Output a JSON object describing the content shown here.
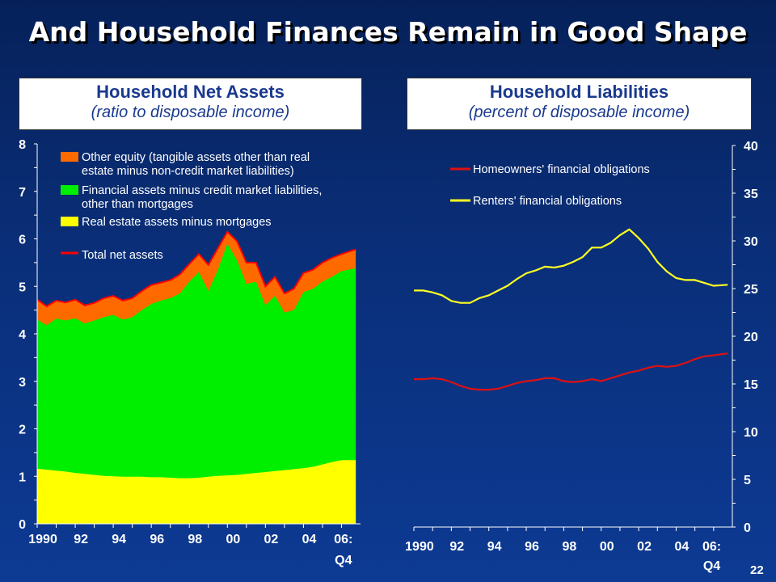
{
  "title": "And Household Finances Remain in Good Shape",
  "page_number": "22",
  "left_panel": {
    "title": "Household Net Assets",
    "subtitle": "(ratio to disposable income)"
  },
  "right_panel": {
    "title": "Household Liabilities",
    "subtitle": "(percent of disposable income)"
  },
  "colors": {
    "real_estate": "#ffff00",
    "financial": "#00ee00",
    "other_equity": "#ff6a00",
    "total_line": "#ff0000",
    "homeowners": "#dd1111",
    "renters": "#ffff22",
    "background": "#0a2f7a"
  },
  "chart_data": [
    {
      "type": "area",
      "x_labels": [
        "1990",
        "92",
        "94",
        "96",
        "98",
        "00",
        "02",
        "04",
        "06:",
        "Q4"
      ],
      "ylim": [
        0,
        8
      ],
      "y_ticks": [
        0,
        1,
        2,
        3,
        4,
        5,
        6,
        7,
        8
      ],
      "x_start": 1990.0,
      "x_end": 2007.0,
      "series": [
        {
          "name": "Real estate assets minus mortgages",
          "x": [
            1990,
            1990.5,
            1991,
            1991.5,
            1992,
            1992.5,
            1993,
            1993.5,
            1994,
            1994.5,
            1995,
            1995.5,
            1996,
            1996.5,
            1997,
            1997.5,
            1998,
            1998.5,
            1999,
            1999.5,
            2000,
            2000.5,
            2001,
            2001.5,
            2002,
            2002.5,
            2003,
            2003.5,
            2004,
            2004.5,
            2005,
            2005.5,
            2006,
            2006.75
          ],
          "values": [
            1.16,
            1.14,
            1.12,
            1.1,
            1.07,
            1.05,
            1.03,
            1.01,
            1.0,
            0.99,
            0.99,
            0.99,
            0.98,
            0.98,
            0.97,
            0.96,
            0.96,
            0.97,
            0.99,
            1.01,
            1.02,
            1.03,
            1.05,
            1.07,
            1.09,
            1.11,
            1.13,
            1.15,
            1.17,
            1.2,
            1.25,
            1.3,
            1.34,
            1.34
          ]
        },
        {
          "name": "Financial assets minus credit market liabilities, other than mortgages",
          "x": [
            1990,
            1990.5,
            1991,
            1991.5,
            1992,
            1992.5,
            1993,
            1993.5,
            1994,
            1994.5,
            1995,
            1995.5,
            1996,
            1996.5,
            1997,
            1997.5,
            1998,
            1998.5,
            1999,
            1999.5,
            2000,
            2000.5,
            2001,
            2001.5,
            2002,
            2002.5,
            2003,
            2003.5,
            2004,
            2004.5,
            2005,
            2005.5,
            2006,
            2006.75
          ],
          "values": [
            4.3,
            4.18,
            4.32,
            4.28,
            4.33,
            4.22,
            4.28,
            4.35,
            4.4,
            4.3,
            4.35,
            4.5,
            4.63,
            4.7,
            4.75,
            4.85,
            5.1,
            5.3,
            4.9,
            5.35,
            5.9,
            5.55,
            5.05,
            5.1,
            4.6,
            4.8,
            4.45,
            4.5,
            4.88,
            4.95,
            5.1,
            5.2,
            5.32,
            5.38
          ]
        },
        {
          "name": "Other equity (tangible assets other than real estate minus non-credit market liabilities)",
          "x": [
            1990,
            1990.5,
            1991,
            1991.5,
            1992,
            1992.5,
            1993,
            1993.5,
            1994,
            1994.5,
            1995,
            1995.5,
            1996,
            1996.5,
            1997,
            1997.5,
            1998,
            1998.5,
            1999,
            1999.5,
            2000,
            2000.5,
            2001,
            2001.5,
            2002,
            2002.5,
            2003,
            2003.5,
            2004,
            2004.5,
            2005,
            2005.5,
            2006,
            2006.75
          ],
          "values": [
            4.72,
            4.58,
            4.7,
            4.66,
            4.72,
            4.6,
            4.65,
            4.75,
            4.8,
            4.7,
            4.75,
            4.9,
            5.03,
            5.08,
            5.13,
            5.25,
            5.47,
            5.68,
            5.45,
            5.8,
            6.15,
            5.95,
            5.5,
            5.5,
            5.0,
            5.2,
            4.85,
            4.95,
            5.28,
            5.35,
            5.5,
            5.6,
            5.68,
            5.78
          ]
        },
        {
          "name": "Total net assets",
          "x": [
            1990,
            1990.5,
            1991,
            1991.5,
            1992,
            1992.5,
            1993,
            1993.5,
            1994,
            1994.5,
            1995,
            1995.5,
            1996,
            1996.5,
            1997,
            1997.5,
            1998,
            1998.5,
            1999,
            1999.5,
            2000,
            2000.5,
            2001,
            2001.5,
            2002,
            2002.5,
            2003,
            2003.5,
            2004,
            2004.5,
            2005,
            2005.5,
            2006,
            2006.75
          ],
          "values": [
            4.72,
            4.58,
            4.7,
            4.66,
            4.72,
            4.6,
            4.65,
            4.75,
            4.8,
            4.7,
            4.75,
            4.9,
            5.03,
            5.08,
            5.13,
            5.25,
            5.47,
            5.68,
            5.45,
            5.8,
            6.15,
            5.95,
            5.5,
            5.5,
            5.0,
            5.2,
            4.85,
            4.95,
            5.28,
            5.35,
            5.5,
            5.6,
            5.68,
            5.78
          ]
        }
      ],
      "legend": [
        {
          "key": "other_equity",
          "lines": [
            "Other equity (tangible assets other than real",
            "estate minus non-credit market liabilities)"
          ]
        },
        {
          "key": "financial",
          "lines": [
            "Financial assets minus credit market liabilities,",
            "other than mortgages"
          ]
        },
        {
          "key": "real_estate",
          "lines": [
            "Real estate assets minus mortgages"
          ]
        },
        {
          "key": "total_line",
          "lines": [
            "Total net assets"
          ]
        }
      ],
      "legend_position": "top-left"
    },
    {
      "type": "line",
      "x_labels": [
        "1990",
        "92",
        "94",
        "96",
        "98",
        "00",
        "02",
        "04",
        "06:",
        "Q4"
      ],
      "ylim": [
        0,
        40
      ],
      "y_ticks": [
        0,
        5,
        10,
        15,
        20,
        25,
        30,
        35,
        40
      ],
      "x_start": 1990.0,
      "x_end": 2007.0,
      "series": [
        {
          "name": "Homeowners' financial obligations",
          "x": [
            1990,
            1990.5,
            1991,
            1991.5,
            1992,
            1992.5,
            1993,
            1993.5,
            1994,
            1994.5,
            1995,
            1995.5,
            1996,
            1996.5,
            1997,
            1997.5,
            1998,
            1998.5,
            1999,
            1999.5,
            2000,
            2000.5,
            2001,
            2001.5,
            2002,
            2002.5,
            2003,
            2003.5,
            2004,
            2004.5,
            2005,
            2005.5,
            2006,
            2006.75
          ],
          "values": [
            15.5,
            15.5,
            15.6,
            15.5,
            15.2,
            14.8,
            14.5,
            14.4,
            14.4,
            14.5,
            14.8,
            15.1,
            15.3,
            15.4,
            15.6,
            15.6,
            15.3,
            15.2,
            15.3,
            15.5,
            15.3,
            15.6,
            15.9,
            16.2,
            16.4,
            16.7,
            16.9,
            16.8,
            16.9,
            17.2,
            17.6,
            17.9,
            18.0,
            18.2
          ]
        },
        {
          "name": "Renters' financial obligations",
          "x": [
            1990,
            1990.5,
            1991,
            1991.5,
            1992,
            1992.5,
            1993,
            1993.5,
            1994,
            1994.5,
            1995,
            1995.5,
            1996,
            1996.5,
            1997,
            1997.5,
            1998,
            1998.5,
            1999,
            1999.5,
            2000,
            2000.5,
            2001,
            2001.5,
            2002,
            2002.5,
            2003,
            2003.5,
            2004,
            2004.5,
            2005,
            2005.5,
            2006,
            2006.75
          ],
          "values": [
            24.8,
            24.8,
            24.6,
            24.3,
            23.7,
            23.5,
            23.5,
            24.0,
            24.3,
            24.8,
            25.3,
            26.0,
            26.6,
            26.9,
            27.3,
            27.2,
            27.4,
            27.8,
            28.3,
            29.3,
            29.3,
            29.8,
            30.6,
            31.2,
            30.3,
            29.2,
            27.8,
            26.8,
            26.1,
            25.9,
            25.9,
            25.6,
            25.3,
            25.4
          ]
        }
      ],
      "legend": [
        {
          "key": "homeowners",
          "lines": [
            "Homeowners' financial obligations"
          ]
        },
        {
          "key": "renters",
          "lines": [
            "Renters' financial obligations"
          ]
        }
      ],
      "legend_position": "top-left"
    }
  ]
}
